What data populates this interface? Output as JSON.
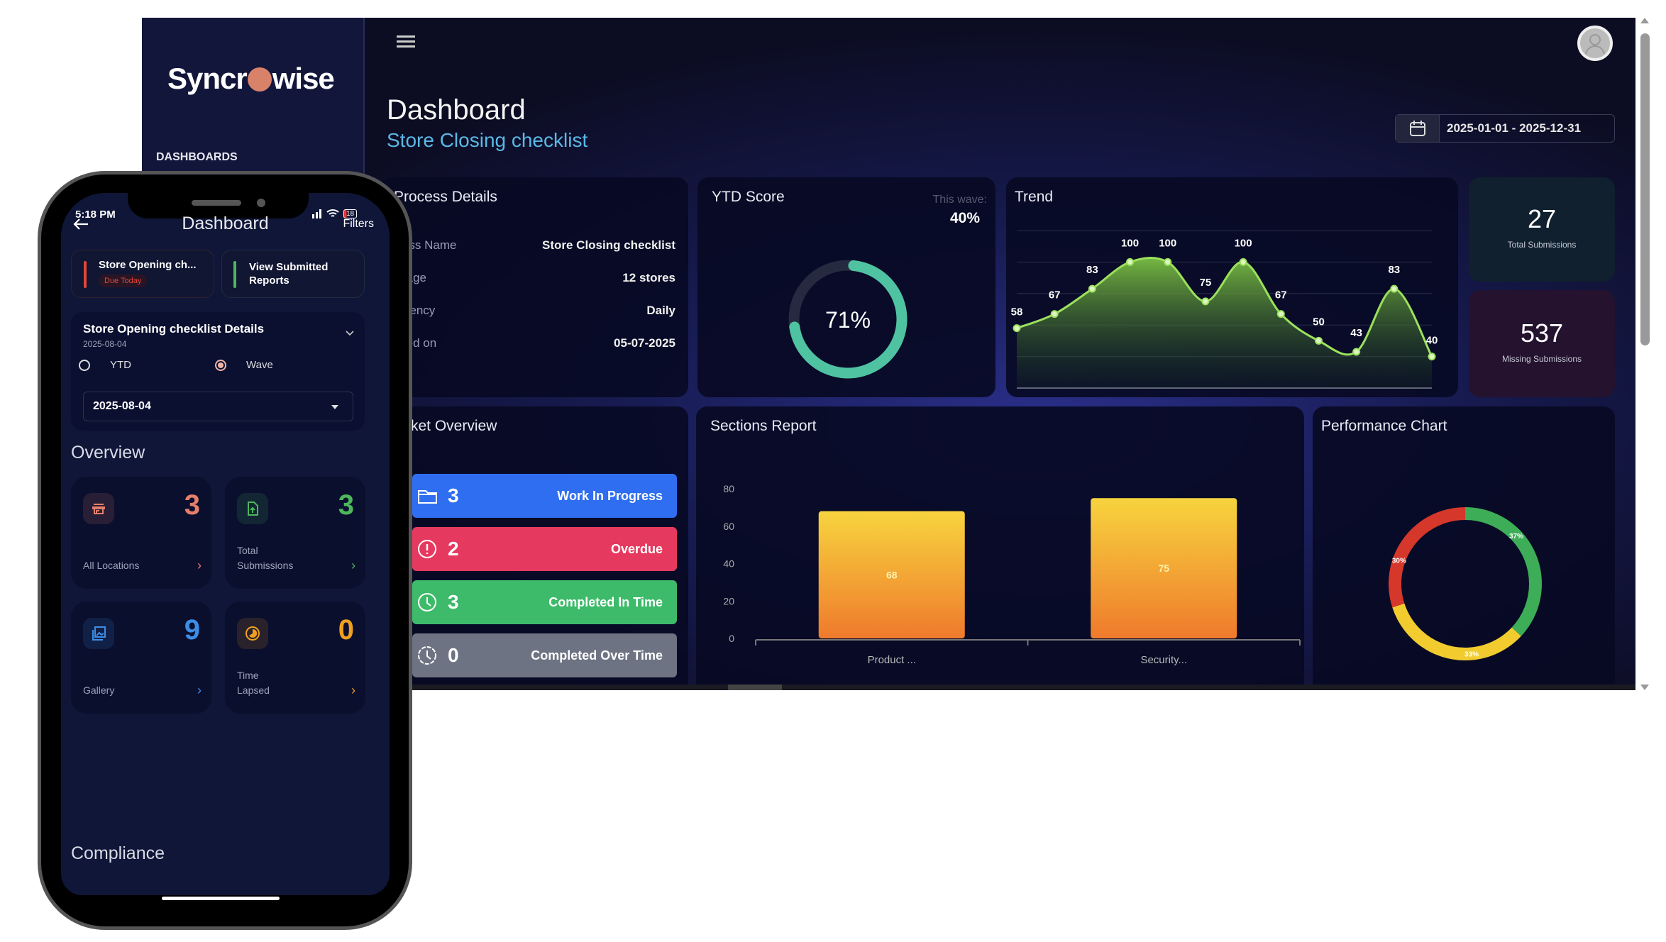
{
  "sidebar": {
    "logo": "Syncrowise",
    "logo_left": "Syncr",
    "logo_right": "wise",
    "section_label": "DASHBOARDS"
  },
  "header": {
    "title": "Dashboard",
    "subtitle": "Store Closing checklist",
    "date_range": "2025-01-01 - 2025-12-31"
  },
  "process_details": {
    "title": "Process Details",
    "rows": [
      {
        "label": "ocess Name",
        "value": "Store Closing checklist"
      },
      {
        "label": "verage",
        "value": "12 stores"
      },
      {
        "label": "equency",
        "value": "Daily"
      },
      {
        "label": "eated on",
        "value": "05-07-2025"
      }
    ]
  },
  "ytd": {
    "title": "YTD Score",
    "wave_label": "This wave:",
    "wave_value": "40%",
    "score_label": "71%",
    "score": 71,
    "color": "#4fc3a1"
  },
  "trend": {
    "title": "Trend"
  },
  "stats": {
    "total": {
      "value": "27",
      "label": "Total Submissions"
    },
    "missing": {
      "value": "537",
      "label": "Missing Submissions"
    }
  },
  "tickets": {
    "title": "ket Overview",
    "items": [
      {
        "count": "3",
        "label": "Work In Progress",
        "color": "#2f6ef0",
        "icon": "folder-icon"
      },
      {
        "count": "2",
        "label": "Overdue",
        "color": "#e6395f",
        "icon": "alert-circle-icon"
      },
      {
        "count": "3",
        "label": "Completed In Time",
        "color": "#3dba6a",
        "icon": "clock-icon"
      },
      {
        "count": "0",
        "label": "Completed Over Time",
        "color": "#6d7382",
        "icon": "clock-dashed-icon"
      }
    ]
  },
  "sections": {
    "title": "Sections Report"
  },
  "performance": {
    "title": "Performance Chart"
  },
  "chart_data": [
    {
      "type": "line",
      "name": "trend",
      "values": [
        58,
        67,
        83,
        100,
        100,
        75,
        100,
        67,
        50,
        43,
        83,
        40
      ],
      "ylim": [
        20,
        120
      ],
      "grid": true,
      "color": "#9be15d"
    },
    {
      "type": "bar",
      "name": "sections",
      "categories": [
        "Product ...",
        "Security..."
      ],
      "values": [
        68,
        75
      ],
      "yticks": [
        0,
        20,
        40,
        60,
        80
      ],
      "ylim": [
        0,
        80
      ]
    },
    {
      "type": "pie",
      "name": "performance",
      "slices": [
        {
          "label": "37%",
          "value": 37,
          "color": "#3dae57"
        },
        {
          "label": "33%",
          "value": 33,
          "color": "#f2cc2e"
        },
        {
          "label": "30%",
          "value": 30,
          "color": "#d6372b"
        }
      ]
    }
  ],
  "phone": {
    "status": {
      "time": "5:18 PM",
      "battery": "18"
    },
    "title": "Dashboard",
    "filters": "Filters",
    "cards": [
      {
        "title": "Store Opening ch...",
        "badge": "Due Today"
      },
      {
        "title": "View Submitted Reports"
      }
    ],
    "details": {
      "title": "Store Opening checklist Details",
      "date": "2025-08-04",
      "radio_ytd": "YTD",
      "radio_wave": "Wave",
      "selected": "Wave",
      "dropdown": "2025-08-04"
    },
    "overview_title": "Overview",
    "tiles": [
      {
        "label": "All Locations",
        "value": "3",
        "color": "#e57f6b",
        "icon": "store-icon"
      },
      {
        "label": "Total Submissions",
        "value": "3",
        "color": "#4cb85c",
        "icon": "file-upload-icon"
      },
      {
        "label": "Gallery",
        "value": "9",
        "color": "#3d8de6",
        "icon": "gallery-icon"
      },
      {
        "label": "Time Lapsed",
        "value": "0",
        "color": "#f0a020",
        "icon": "timer-icon"
      }
    ],
    "compliance_title": "Compliance"
  }
}
